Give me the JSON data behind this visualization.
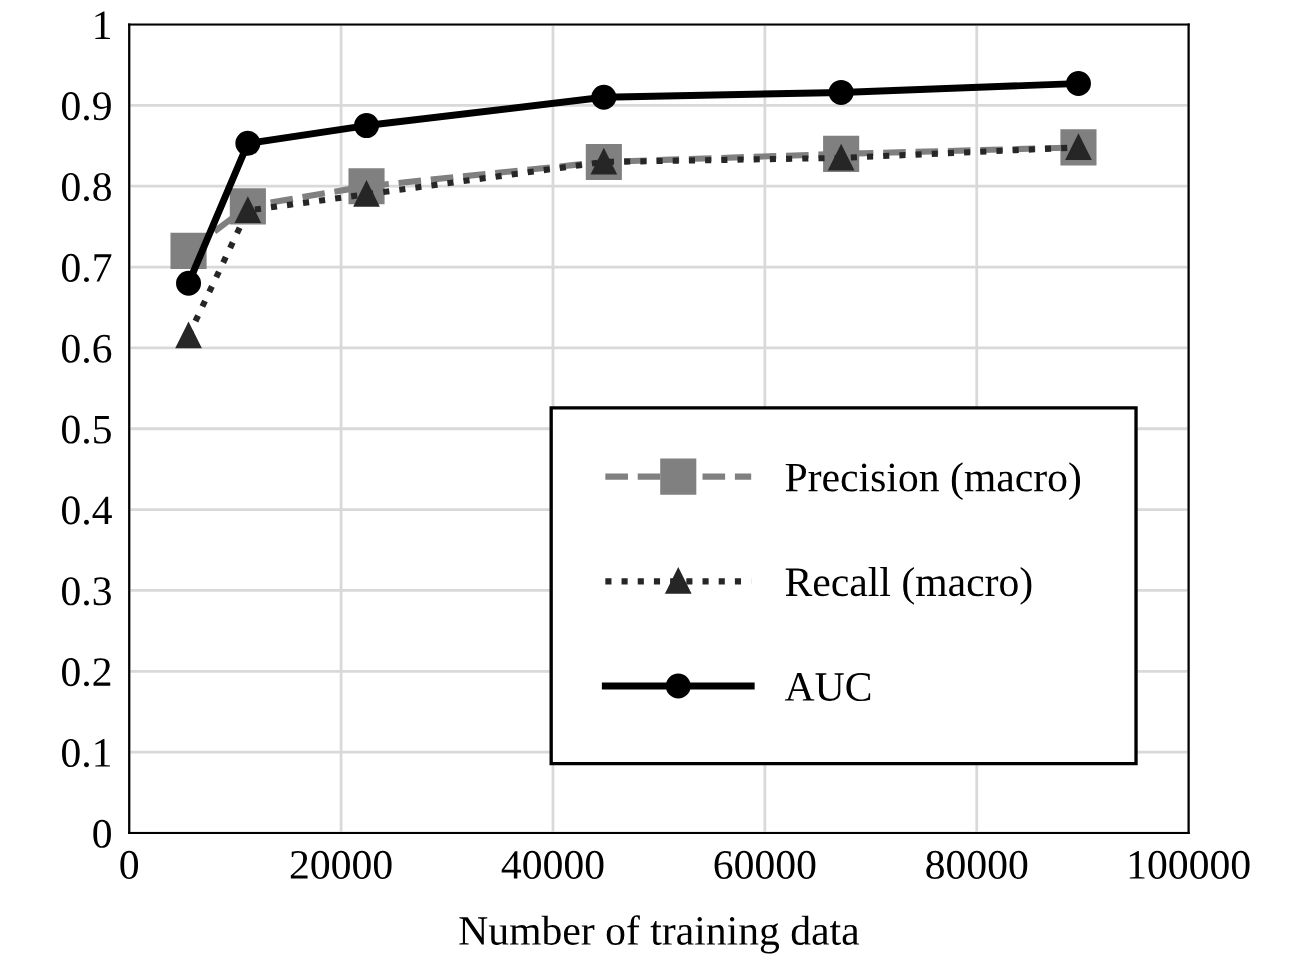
{
  "chart_data": {
    "type": "line",
    "xlabel": "Number of training data",
    "xlim": [
      0,
      100000
    ],
    "xticks": [
      0,
      20000,
      40000,
      60000,
      80000,
      100000
    ],
    "ylim": [
      0,
      1
    ],
    "yticks": [
      0,
      0.1,
      0.2,
      0.3,
      0.4,
      0.5,
      0.6,
      0.7,
      0.8,
      0.9,
      1
    ],
    "grid": true,
    "legend": "bottom right",
    "series": [
      {
        "name": "Precision (macro)",
        "color": "#808080",
        "marker": "square",
        "line_style": "dashed",
        "x": [
          5600,
          11200,
          22400,
          44800,
          67200,
          89600
        ],
        "values": [
          0.72,
          0.775,
          0.8,
          0.83,
          0.84,
          0.848
        ]
      },
      {
        "name": "Recall (macro)",
        "color": "#262626",
        "marker": "triangle",
        "line_style": "dotted",
        "x": [
          5600,
          11200,
          22400,
          44800,
          67200,
          89600
        ],
        "values": [
          0.615,
          0.77,
          0.79,
          0.83,
          0.835,
          0.848
        ]
      },
      {
        "name": "AUC",
        "color": "#000000",
        "marker": "circle",
        "line_style": "solid",
        "x": [
          5600,
          11200,
          22400,
          44800,
          67200,
          89600
        ],
        "values": [
          0.68,
          0.853,
          0.875,
          0.91,
          0.916,
          0.927
        ]
      }
    ]
  }
}
